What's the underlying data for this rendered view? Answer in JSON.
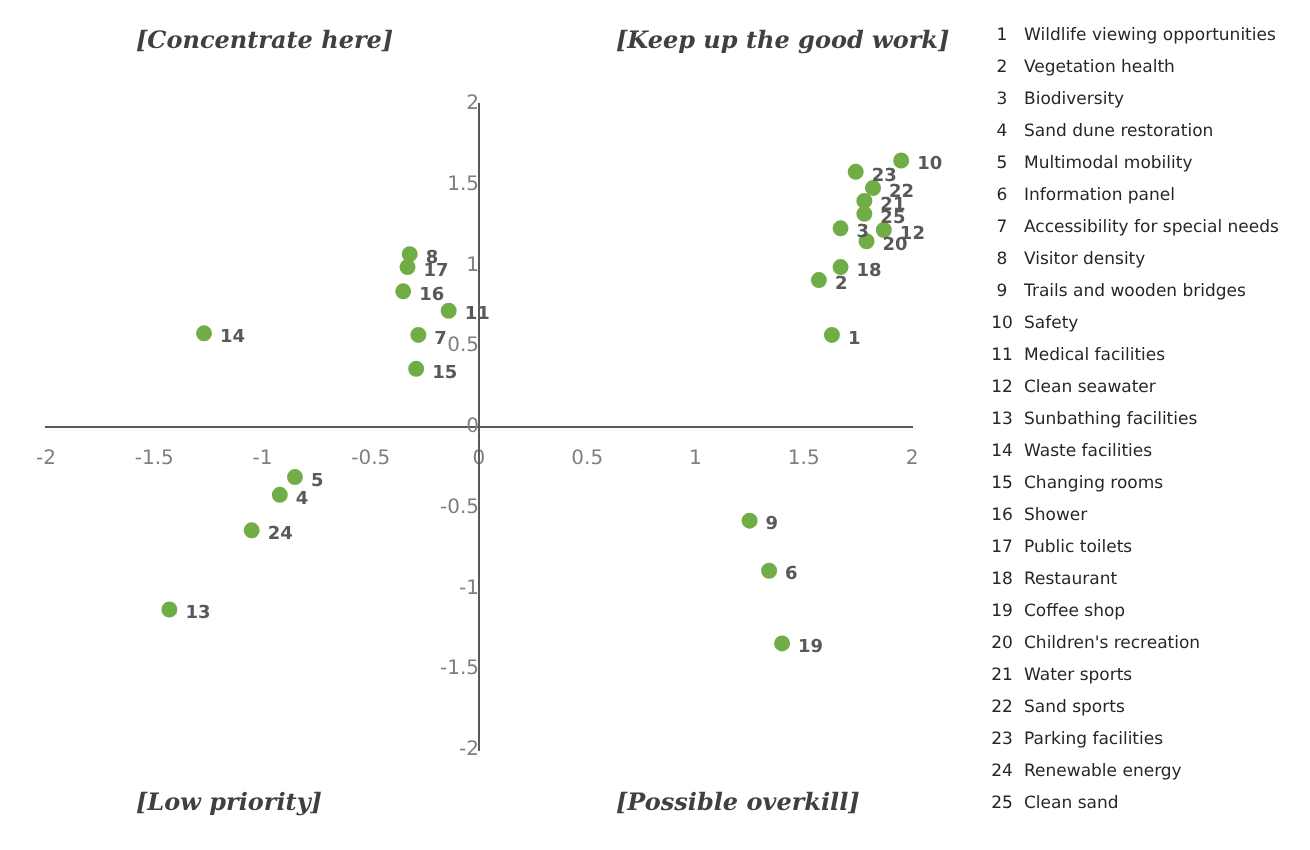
{
  "chart_data": {
    "type": "scatter",
    "x": [
      1.63,
      1.57,
      1.67,
      -0.92,
      -0.85,
      1.34,
      -0.28,
      -0.32,
      1.25,
      1.95,
      -0.14,
      1.87,
      -1.43,
      -1.27,
      -0.29,
      -0.35,
      -0.33,
      1.67,
      1.4,
      1.79,
      1.78,
      1.82,
      1.74,
      -1.05,
      1.78
    ],
    "values": [
      0.57,
      0.91,
      1.23,
      -0.42,
      -0.31,
      -0.89,
      0.57,
      1.07,
      -0.58,
      1.65,
      0.72,
      1.22,
      -1.13,
      0.58,
      0.36,
      0.84,
      0.99,
      0.99,
      -1.34,
      1.15,
      1.4,
      1.48,
      1.58,
      -0.64,
      1.32
    ],
    "color": "#70ad47",
    "marker": "circle",
    "grid": false,
    "legend": false,
    "xlim": [
      -2,
      2
    ],
    "xticks": [
      -2,
      -1.5,
      -1,
      -0.5,
      0,
      0.5,
      1,
      1.5,
      2
    ],
    "ylim": [
      -2,
      2
    ],
    "yticks": [
      -2,
      -1.5,
      -1,
      -0.5,
      0,
      0.5,
      1,
      1.5,
      2
    ],
    "annotations": [
      "[Concentrate here]",
      "[Keep up the good work]",
      "[Low priority]",
      "[Possible overkill]",
      "1 Wildlife viewing opportunities",
      "2 Vegetation health",
      "3 Biodiversity",
      "4 Sand dune restoration",
      "5 Multimodal mobility",
      "6 Information panel",
      "7 Accessibility for special needs",
      "8 Visitor density",
      "9 Trails and wooden bridges",
      "10 Safety",
      "11 Medical facilities",
      "12 Clean seawater",
      "13 Sunbathing facilities",
      "14 Waste facilities",
      "15 Changing rooms",
      "16 Shower",
      "17 Public toilets",
      "18 Restaurant",
      "19 Coffee shop",
      "20 Children's recreation",
      "21 Water sports",
      "22 Sand sports",
      "23 Parking facilities",
      "24 Renewable energy",
      "25 Clean sand",
      {
        "text": "1",
        "x": 1.63,
        "y": 0.57
      },
      {
        "text": "2",
        "x": 1.57,
        "y": 0.91
      },
      {
        "text": "3",
        "x": 1.67,
        "y": 1.23
      },
      {
        "text": "4",
        "x": -0.92,
        "y": -0.42
      },
      {
        "text": "5",
        "x": -0.85,
        "y": -0.31
      },
      {
        "text": "6",
        "x": 1.34,
        "y": -0.89
      },
      {
        "text": "7",
        "x": -0.28,
        "y": 0.57
      },
      {
        "text": "8",
        "x": -0.32,
        "y": 1.07
      },
      {
        "text": "9",
        "x": 1.25,
        "y": -0.58
      },
      {
        "text": "10",
        "x": 1.95,
        "y": 1.65
      },
      {
        "text": "11",
        "x": -0.14,
        "y": 0.72
      },
      {
        "text": "12",
        "x": 1.87,
        "y": 1.22
      },
      {
        "text": "13",
        "x": -1.43,
        "y": -1.13
      },
      {
        "text": "14",
        "x": -1.27,
        "y": 0.58
      },
      {
        "text": "15",
        "x": -0.29,
        "y": 0.36
      },
      {
        "text": "16",
        "x": -0.35,
        "y": 0.84
      },
      {
        "text": "17",
        "x": -0.33,
        "y": 0.99
      },
      {
        "text": "18",
        "x": 1.67,
        "y": 0.99
      },
      {
        "text": "19",
        "x": 1.4,
        "y": -1.34
      },
      {
        "text": "20",
        "x": 1.79,
        "y": 1.15
      },
      {
        "text": "21",
        "x": 1.78,
        "y": 1.4
      },
      {
        "text": "22",
        "x": 1.82,
        "y": 1.48
      },
      {
        "text": "23",
        "x": 1.74,
        "y": 1.58
      },
      {
        "text": "24",
        "x": -1.05,
        "y": -0.64
      },
      {
        "text": "25",
        "x": 1.78,
        "y": 1.32
      }
    ]
  }
}
